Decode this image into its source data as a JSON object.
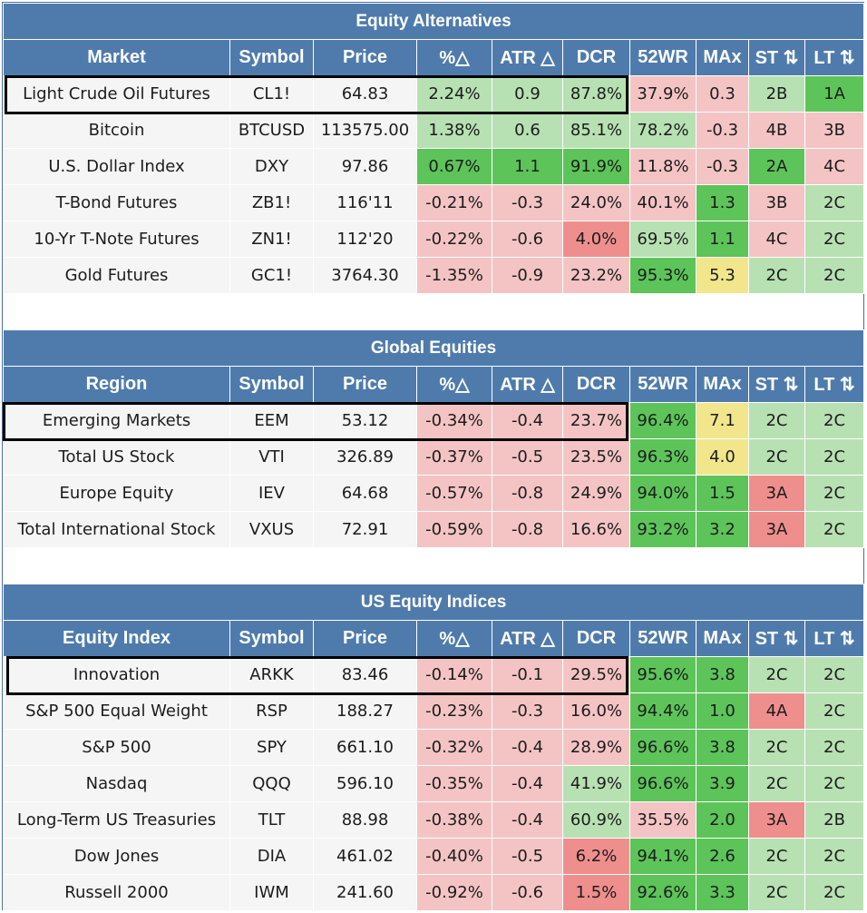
{
  "headers": [
    "Symbol",
    "Price",
    "%△",
    "ATR △",
    "DCR",
    "52WR",
    "MAx",
    "ST ⇅",
    "LT ⇅"
  ],
  "sections": [
    {
      "title": "Equity Alternatives",
      "first_header": "Market",
      "rows": [
        {
          "name": "Light Crude Oil Futures",
          "cells": [
            [
              "CL1!",
              "w"
            ],
            [
              "64.83",
              "w"
            ],
            [
              "2.24%",
              "lg"
            ],
            [
              "0.9",
              "lg"
            ],
            [
              "87.8%",
              "lg"
            ],
            [
              "37.9%",
              "lp"
            ],
            [
              "0.3",
              "lp"
            ],
            [
              "2B",
              "lg"
            ],
            [
              "1A",
              "mg"
            ]
          ]
        },
        {
          "name": "Bitcoin",
          "cells": [
            [
              "BTCUSD",
              "w"
            ],
            [
              "113575.00",
              "w"
            ],
            [
              "1.38%",
              "lg"
            ],
            [
              "0.6",
              "lg"
            ],
            [
              "85.1%",
              "lg"
            ],
            [
              "78.2%",
              "lg"
            ],
            [
              "-0.3",
              "lp"
            ],
            [
              "4B",
              "lp"
            ],
            [
              "3B",
              "lp"
            ]
          ]
        },
        {
          "name": "U.S. Dollar Index",
          "cells": [
            [
              "DXY",
              "w"
            ],
            [
              "97.86",
              "w"
            ],
            [
              "0.67%",
              "mg"
            ],
            [
              "1.1",
              "mg"
            ],
            [
              "91.9%",
              "mg"
            ],
            [
              "11.8%",
              "lp"
            ],
            [
              "-0.3",
              "lp"
            ],
            [
              "2A",
              "mg"
            ],
            [
              "4C",
              "lp"
            ]
          ]
        },
        {
          "name": "T-Bond Futures",
          "cells": [
            [
              "ZB1!",
              "w"
            ],
            [
              "116'11",
              "w"
            ],
            [
              "-0.21%",
              "lp"
            ],
            [
              "-0.3",
              "lp"
            ],
            [
              "24.0%",
              "lp"
            ],
            [
              "40.1%",
              "lp"
            ],
            [
              "1.3",
              "mg"
            ],
            [
              "3B",
              "lp"
            ],
            [
              "2C",
              "lg"
            ]
          ]
        },
        {
          "name": "10-Yr T-Note Futures",
          "cells": [
            [
              "ZN1!",
              "w"
            ],
            [
              "112'20",
              "w"
            ],
            [
              "-0.22%",
              "lp"
            ],
            [
              "-0.6",
              "lp"
            ],
            [
              "4.0%",
              "sr"
            ],
            [
              "69.5%",
              "lg"
            ],
            [
              "1.1",
              "mg"
            ],
            [
              "4C",
              "lp"
            ],
            [
              "2C",
              "lg"
            ]
          ]
        },
        {
          "name": "Gold Futures",
          "cells": [
            [
              "GC1!",
              "w"
            ],
            [
              "3764.30",
              "w"
            ],
            [
              "-1.35%",
              "lp"
            ],
            [
              "-0.9",
              "lp"
            ],
            [
              "23.2%",
              "lp"
            ],
            [
              "95.3%",
              "mg"
            ],
            [
              "5.3",
              "yl"
            ],
            [
              "2C",
              "lg"
            ],
            [
              "2C",
              "lg"
            ]
          ]
        }
      ]
    },
    {
      "title": "Global Equities",
      "first_header": "Region",
      "rows": [
        {
          "name": "Emerging Markets",
          "cells": [
            [
              "EEM",
              "w"
            ],
            [
              "53.12",
              "w"
            ],
            [
              "-0.34%",
              "lp"
            ],
            [
              "-0.4",
              "lp"
            ],
            [
              "23.7%",
              "lp"
            ],
            [
              "96.4%",
              "mg"
            ],
            [
              "7.1",
              "yl"
            ],
            [
              "2C",
              "lg"
            ],
            [
              "2C",
              "lg"
            ]
          ]
        },
        {
          "name": "Total US Stock",
          "cells": [
            [
              "VTI",
              "w"
            ],
            [
              "326.89",
              "w"
            ],
            [
              "-0.37%",
              "lp"
            ],
            [
              "-0.5",
              "lp"
            ],
            [
              "23.5%",
              "lp"
            ],
            [
              "96.3%",
              "mg"
            ],
            [
              "4.0",
              "yl"
            ],
            [
              "2C",
              "lg"
            ],
            [
              "2C",
              "lg"
            ]
          ]
        },
        {
          "name": "Europe Equity",
          "cells": [
            [
              "IEV",
              "w"
            ],
            [
              "64.68",
              "w"
            ],
            [
              "-0.57%",
              "lp"
            ],
            [
              "-0.8",
              "lp"
            ],
            [
              "24.9%",
              "lp"
            ],
            [
              "94.0%",
              "mg"
            ],
            [
              "1.5",
              "mg"
            ],
            [
              "3A",
              "sr"
            ],
            [
              "2C",
              "lg"
            ]
          ]
        },
        {
          "name": "Total International Stock",
          "cells": [
            [
              "VXUS",
              "w"
            ],
            [
              "72.91",
              "w"
            ],
            [
              "-0.59%",
              "lp"
            ],
            [
              "-0.8",
              "lp"
            ],
            [
              "16.6%",
              "lp"
            ],
            [
              "93.2%",
              "mg"
            ],
            [
              "3.2",
              "mg"
            ],
            [
              "3A",
              "sr"
            ],
            [
              "2C",
              "lg"
            ]
          ]
        }
      ]
    },
    {
      "title": "US Equity Indices",
      "first_header": "Equity Index",
      "rows": [
        {
          "name": "Innovation",
          "cells": [
            [
              "ARKK",
              "w"
            ],
            [
              "83.46",
              "w"
            ],
            [
              "-0.14%",
              "lp"
            ],
            [
              "-0.1",
              "lp"
            ],
            [
              "29.5%",
              "lp"
            ],
            [
              "95.6%",
              "mg"
            ],
            [
              "3.8",
              "mg"
            ],
            [
              "2C",
              "lg"
            ],
            [
              "2C",
              "lg"
            ]
          ]
        },
        {
          "name": "S&P 500 Equal Weight",
          "cells": [
            [
              "RSP",
              "w"
            ],
            [
              "188.27",
              "w"
            ],
            [
              "-0.23%",
              "lp"
            ],
            [
              "-0.3",
              "lp"
            ],
            [
              "16.0%",
              "lp"
            ],
            [
              "94.4%",
              "mg"
            ],
            [
              "1.0",
              "mg"
            ],
            [
              "4A",
              "sr"
            ],
            [
              "2C",
              "lg"
            ]
          ]
        },
        {
          "name": "S&P 500",
          "cells": [
            [
              "SPY",
              "w"
            ],
            [
              "661.10",
              "w"
            ],
            [
              "-0.32%",
              "lp"
            ],
            [
              "-0.4",
              "lp"
            ],
            [
              "28.9%",
              "lp"
            ],
            [
              "96.6%",
              "mg"
            ],
            [
              "3.8",
              "mg"
            ],
            [
              "2C",
              "lg"
            ],
            [
              "2C",
              "lg"
            ]
          ]
        },
        {
          "name": "Nasdaq",
          "cells": [
            [
              "QQQ",
              "w"
            ],
            [
              "596.10",
              "w"
            ],
            [
              "-0.35%",
              "lp"
            ],
            [
              "-0.4",
              "lp"
            ],
            [
              "41.9%",
              "lg"
            ],
            [
              "96.6%",
              "mg"
            ],
            [
              "3.9",
              "mg"
            ],
            [
              "2C",
              "lg"
            ],
            [
              "2C",
              "lg"
            ]
          ]
        },
        {
          "name": "Long-Term US Treasuries",
          "cells": [
            [
              "TLT",
              "w"
            ],
            [
              "88.98",
              "w"
            ],
            [
              "-0.38%",
              "lp"
            ],
            [
              "-0.4",
              "lp"
            ],
            [
              "60.9%",
              "lg"
            ],
            [
              "35.5%",
              "lp"
            ],
            [
              "2.0",
              "mg"
            ],
            [
              "3A",
              "sr"
            ],
            [
              "2B",
              "lg"
            ]
          ]
        },
        {
          "name": "Dow Jones",
          "cells": [
            [
              "DIA",
              "w"
            ],
            [
              "461.02",
              "w"
            ],
            [
              "-0.40%",
              "lp"
            ],
            [
              "-0.5",
              "lp"
            ],
            [
              "6.2%",
              "sr"
            ],
            [
              "94.1%",
              "mg"
            ],
            [
              "2.6",
              "mg"
            ],
            [
              "2C",
              "lg"
            ],
            [
              "2C",
              "lg"
            ]
          ]
        },
        {
          "name": "Russell 2000",
          "cells": [
            [
              "IWM",
              "w"
            ],
            [
              "241.60",
              "w"
            ],
            [
              "-0.92%",
              "lp"
            ],
            [
              "-0.6",
              "lp"
            ],
            [
              "1.5%",
              "sr"
            ],
            [
              "92.6%",
              "mg"
            ],
            [
              "3.3",
              "mg"
            ],
            [
              "2C",
              "lg"
            ],
            [
              "2C",
              "lg"
            ]
          ]
        }
      ]
    }
  ]
}
